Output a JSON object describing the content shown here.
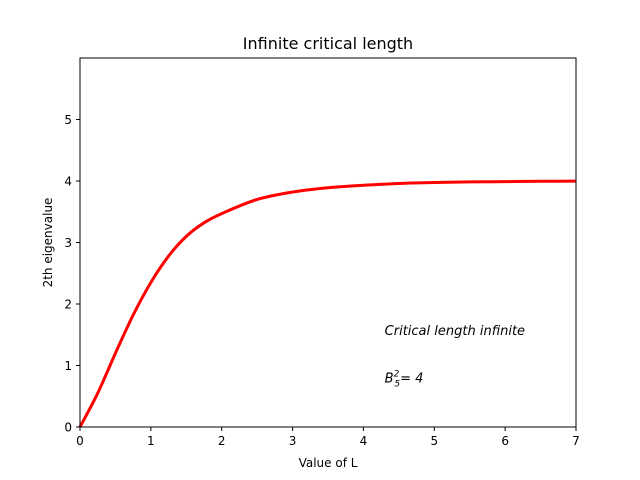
{
  "chart_data": {
    "type": "line",
    "title": "Infinite critical length",
    "xlabel": "Value of L",
    "ylabel": "2th eigenvalue",
    "xlim": [
      0,
      7
    ],
    "ylim": [
      0,
      6
    ],
    "xticks": [
      "0",
      "1",
      "2",
      "3",
      "4",
      "5",
      "6",
      "7"
    ],
    "yticks": [
      "0",
      "1",
      "2",
      "3",
      "4",
      "5"
    ],
    "grid": false,
    "series": [
      {
        "color": "#ff0000",
        "x": [
          0,
          0.25,
          0.5,
          0.75,
          1.0,
          1.25,
          1.5,
          1.75,
          2.0,
          2.5,
          3.0,
          3.5,
          4.0,
          4.5,
          5.0,
          5.5,
          6.0,
          6.5,
          7.0
        ],
        "y": [
          0,
          0.55,
          1.2,
          1.82,
          2.35,
          2.78,
          3.1,
          3.32,
          3.47,
          3.7,
          3.82,
          3.89,
          3.93,
          3.96,
          3.975,
          3.985,
          3.99,
          3.995,
          3.998
        ]
      }
    ],
    "annotations": [
      {
        "text": "Critical length infinite",
        "x": 4.3,
        "y": 1.5
      },
      {
        "base": "B",
        "sup": "2",
        "sub": "5",
        "rest": "= 4",
        "x": 4.3,
        "y": 0.72
      }
    ]
  }
}
